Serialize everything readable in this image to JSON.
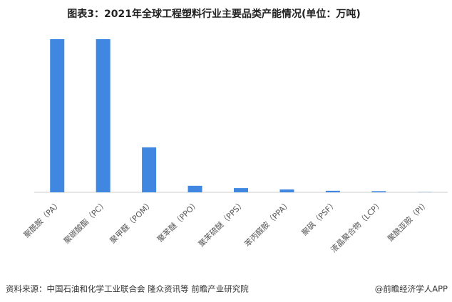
{
  "chart_data": {
    "type": "bar",
    "title": "图表3：2021年全球工程塑料行业主要品类产能情况(单位：万吨)",
    "categories": [
      "聚酰胺（PA）",
      "聚碳酸酯（PC）",
      "聚甲醛（POM）",
      "聚苯醚（PPO）",
      "聚苯硫醚（PPS）",
      "苯丙醛胺（PPA）",
      "聚砜（PSF）",
      "液晶聚合物（LCP）",
      "聚酰亚胺（PI）"
    ],
    "values": [
      800,
      800,
      235,
      34,
      22,
      15,
      8,
      6,
      1
    ],
    "color": "#3f87e0",
    "ylim": [
      0,
      800
    ],
    "source": "资料来源：中国石油和化学工业联合会 隆众资讯等 前瞻产业研究院",
    "credit": "@前瞻经济学人APP"
  }
}
